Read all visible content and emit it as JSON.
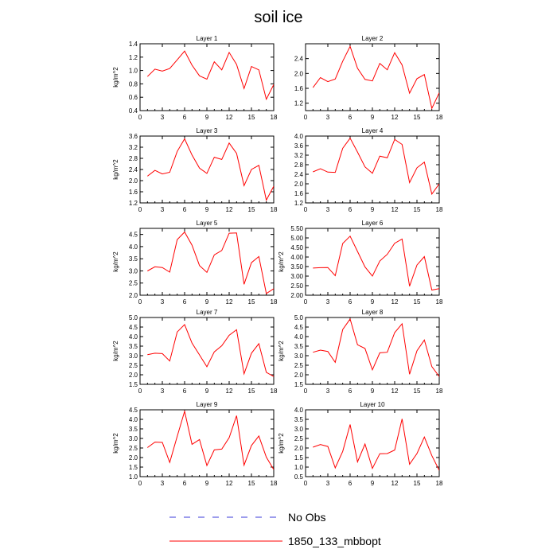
{
  "title": "soil ice",
  "colors": {
    "model": "#ff0000",
    "obs": "#3b3bd9",
    "frame": "#000000"
  },
  "legend": {
    "items": [
      {
        "label": "No Obs",
        "style": "dashed",
        "color": "#3b3bd9"
      },
      {
        "label": "1850_133_mbbopt",
        "style": "solid",
        "color": "#ff0000"
      }
    ]
  },
  "chart_data": [
    {
      "type": "line",
      "title": "Layer 1",
      "ylabel": "kg/m^2",
      "xlim": [
        0,
        18
      ],
      "xticks": [
        0,
        3,
        6,
        9,
        12,
        15,
        18
      ],
      "ylim": [
        0.4,
        1.4
      ],
      "yticks": [
        "0.4",
        "0.6",
        "0.8",
        "1.0",
        "1.2",
        "1.4"
      ],
      "x": [
        1,
        2,
        3,
        4,
        5,
        6,
        7,
        8,
        9,
        10,
        11,
        12,
        13,
        14,
        15,
        16,
        17,
        18
      ],
      "series": [
        {
          "values": [
            0.91,
            1.02,
            0.99,
            1.03,
            1.16,
            1.29,
            1.08,
            0.92,
            0.87,
            1.13,
            1.01,
            1.27,
            1.09,
            0.73,
            1.06,
            1.01,
            0.57,
            0.79
          ]
        }
      ]
    },
    {
      "type": "line",
      "title": "Layer 2",
      "ylabel": "",
      "xlim": [
        0,
        18
      ],
      "xticks": [
        0,
        3,
        6,
        9,
        12,
        15,
        18
      ],
      "ylim": [
        1.0,
        2.8
      ],
      "yticks": [
        "1.2",
        "1.6",
        "2.0",
        "2.4"
      ],
      "x": [
        1,
        2,
        3,
        4,
        5,
        6,
        7,
        8,
        9,
        10,
        11,
        12,
        13,
        14,
        15,
        16,
        17,
        18
      ],
      "series": [
        {
          "values": [
            1.62,
            1.89,
            1.78,
            1.85,
            2.33,
            2.73,
            2.14,
            1.84,
            1.8,
            2.27,
            2.1,
            2.56,
            2.23,
            1.47,
            1.86,
            1.97,
            1.06,
            1.48
          ]
        }
      ]
    },
    {
      "type": "line",
      "title": "Layer 3",
      "ylabel": "kg/m^2",
      "xlim": [
        0,
        18
      ],
      "xticks": [
        0,
        3,
        6,
        9,
        12,
        15,
        18
      ],
      "ylim": [
        1.2,
        3.6
      ],
      "yticks": [
        "1.2",
        "1.6",
        "2.0",
        "2.4",
        "2.8",
        "3.2",
        "3.6"
      ],
      "x": [
        1,
        2,
        3,
        4,
        5,
        6,
        7,
        8,
        9,
        10,
        11,
        12,
        13,
        14,
        15,
        16,
        17,
        18
      ],
      "series": [
        {
          "values": [
            2.16,
            2.37,
            2.24,
            2.3,
            3.05,
            3.5,
            2.92,
            2.45,
            2.26,
            2.84,
            2.76,
            3.35,
            2.98,
            1.82,
            2.4,
            2.55,
            1.3,
            1.8
          ]
        }
      ]
    },
    {
      "type": "line",
      "title": "Layer 4",
      "ylabel": "",
      "xlim": [
        0,
        18
      ],
      "xticks": [
        0,
        3,
        6,
        9,
        12,
        15,
        18
      ],
      "ylim": [
        1.2,
        4.0
      ],
      "yticks": [
        "1.2",
        "1.6",
        "2.0",
        "2.4",
        "2.8",
        "3.2",
        "3.6",
        "4.0"
      ],
      "x": [
        1,
        2,
        3,
        4,
        5,
        6,
        7,
        8,
        9,
        10,
        11,
        12,
        13,
        14,
        15,
        16,
        17,
        18
      ],
      "series": [
        {
          "values": [
            2.5,
            2.63,
            2.49,
            2.48,
            3.49,
            3.91,
            3.33,
            2.71,
            2.44,
            3.16,
            3.09,
            3.86,
            3.65,
            2.05,
            2.67,
            2.91,
            1.57,
            2.0
          ]
        }
      ]
    },
    {
      "type": "line",
      "title": "Layer 5",
      "ylabel": "kg/m^2",
      "xlim": [
        0,
        18
      ],
      "xticks": [
        0,
        3,
        6,
        9,
        12,
        15,
        18
      ],
      "ylim": [
        2.0,
        4.75
      ],
      "yticks": [
        "2.0",
        "2.5",
        "3.0",
        "3.5",
        "4.0",
        "4.5"
      ],
      "x": [
        1,
        2,
        3,
        4,
        5,
        6,
        7,
        8,
        9,
        10,
        11,
        12,
        13,
        14,
        15,
        16,
        17,
        18
      ],
      "series": [
        {
          "values": [
            3.0,
            3.17,
            3.14,
            2.95,
            4.29,
            4.6,
            4.06,
            3.22,
            2.94,
            3.66,
            3.84,
            4.55,
            4.56,
            2.45,
            3.34,
            3.59,
            2.07,
            2.27
          ]
        }
      ]
    },
    {
      "type": "line",
      "title": "Layer 6",
      "ylabel": "kg/m^2",
      "xlim": [
        0,
        18
      ],
      "xticks": [
        0,
        3,
        6,
        9,
        12,
        15,
        18
      ],
      "ylim": [
        2.0,
        5.5
      ],
      "yticks": [
        "2.00",
        "2.50",
        "3.00",
        "3.50",
        "4.00",
        "4.50",
        "5.00",
        "5.50"
      ],
      "x": [
        1,
        2,
        3,
        4,
        5,
        6,
        7,
        8,
        9,
        10,
        11,
        12,
        13,
        14,
        15,
        16,
        17,
        18
      ],
      "series": [
        {
          "values": [
            3.42,
            3.44,
            3.45,
            3.02,
            4.71,
            5.09,
            4.29,
            3.48,
            3.0,
            3.79,
            4.14,
            4.72,
            4.94,
            2.47,
            3.58,
            4.02,
            2.27,
            2.34
          ]
        }
      ]
    },
    {
      "type": "line",
      "title": "Layer 7",
      "ylabel": "kg/m^2",
      "xlim": [
        0,
        18
      ],
      "xticks": [
        0,
        3,
        6,
        9,
        12,
        15,
        18
      ],
      "ylim": [
        1.5,
        5.0
      ],
      "yticks": [
        "1.5",
        "2.0",
        "2.5",
        "3.0",
        "3.5",
        "4.0",
        "4.5",
        "5.0"
      ],
      "x": [
        1,
        2,
        3,
        4,
        5,
        6,
        7,
        8,
        9,
        10,
        11,
        12,
        13,
        14,
        15,
        16,
        17,
        18
      ],
      "series": [
        {
          "values": [
            3.05,
            3.13,
            3.11,
            2.72,
            4.24,
            4.63,
            3.66,
            3.04,
            2.42,
            3.2,
            3.52,
            4.07,
            4.36,
            2.05,
            3.13,
            3.63,
            2.13,
            1.91
          ]
        }
      ]
    },
    {
      "type": "line",
      "title": "Layer 8",
      "ylabel": "kg/m^2",
      "xlim": [
        0,
        18
      ],
      "xticks": [
        0,
        3,
        6,
        9,
        12,
        15,
        18
      ],
      "ylim": [
        1.5,
        5.0
      ],
      "yticks": [
        "1.5",
        "2.0",
        "2.5",
        "3.0",
        "3.5",
        "4.0",
        "4.5",
        "5.0"
      ],
      "x": [
        1,
        2,
        3,
        4,
        5,
        6,
        7,
        8,
        9,
        10,
        11,
        12,
        13,
        14,
        15,
        16,
        17,
        18
      ],
      "series": [
        {
          "values": [
            3.18,
            3.29,
            3.22,
            2.65,
            4.37,
            4.92,
            3.57,
            3.38,
            2.26,
            3.15,
            3.18,
            4.21,
            4.67,
            2.03,
            3.26,
            3.82,
            2.43,
            1.91
          ]
        }
      ]
    },
    {
      "type": "line",
      "title": "Layer 9",
      "ylabel": "kg/m^2",
      "xlim": [
        0,
        18
      ],
      "xticks": [
        0,
        3,
        6,
        9,
        12,
        15,
        18
      ],
      "ylim": [
        1.0,
        4.5
      ],
      "yticks": [
        "1.0",
        "1.5",
        "2.0",
        "2.5",
        "3.0",
        "3.5",
        "4.0",
        "4.5"
      ],
      "x": [
        1,
        2,
        3,
        4,
        5,
        6,
        7,
        8,
        9,
        10,
        11,
        12,
        13,
        14,
        15,
        16,
        17,
        18
      ],
      "series": [
        {
          "values": [
            2.52,
            2.81,
            2.79,
            1.74,
            3.11,
            4.42,
            2.69,
            2.94,
            1.58,
            2.4,
            2.44,
            3.04,
            4.19,
            1.6,
            2.63,
            3.13,
            2.02,
            1.37
          ]
        }
      ]
    },
    {
      "type": "line",
      "title": "Layer 10",
      "ylabel": "kg/m^2",
      "xlim": [
        0,
        18
      ],
      "xticks": [
        0,
        3,
        6,
        9,
        12,
        15,
        18
      ],
      "ylim": [
        0.5,
        4.0
      ],
      "yticks": [
        "0.5",
        "1.0",
        "1.5",
        "2.0",
        "2.5",
        "3.0",
        "3.5",
        "4.0"
      ],
      "x": [
        1,
        2,
        3,
        4,
        5,
        6,
        7,
        8,
        9,
        10,
        11,
        12,
        13,
        14,
        15,
        16,
        17,
        18
      ],
      "series": [
        {
          "values": [
            2.04,
            2.18,
            2.08,
            0.96,
            1.82,
            3.23,
            1.27,
            2.21,
            0.93,
            1.7,
            1.71,
            1.89,
            3.52,
            1.15,
            1.71,
            2.57,
            1.6,
            0.83
          ]
        }
      ]
    }
  ]
}
